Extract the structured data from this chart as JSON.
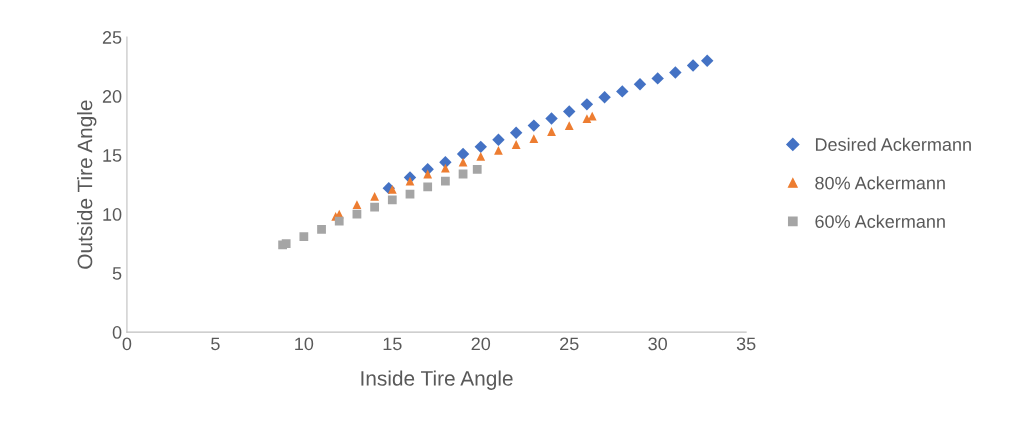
{
  "chart_data": {
    "type": "scatter",
    "xlabel": "Inside Tire Angle",
    "ylabel": "Outside Tire Angle",
    "xlim": [
      0,
      35
    ],
    "xticks": [
      0,
      5,
      10,
      15,
      20,
      25,
      30,
      35
    ],
    "ylim": [
      0,
      25
    ],
    "yticks": [
      0,
      5,
      10,
      15,
      20,
      25
    ],
    "grid": false,
    "legend": "right",
    "series": [
      {
        "name": "Desired Ackermann",
        "color": "#4472c4",
        "marker": "diamond",
        "x": [
          14.8,
          16,
          17,
          18,
          19,
          20,
          21,
          22,
          23,
          24,
          25,
          26,
          27,
          28,
          29,
          30,
          31,
          32,
          32.8
        ],
        "values": [
          12.2,
          13.1,
          13.8,
          14.4,
          15.1,
          15.7,
          16.3,
          16.9,
          17.5,
          18.1,
          18.7,
          19.3,
          19.9,
          20.4,
          21.0,
          21.5,
          22.0,
          22.6,
          23.0
        ]
      },
      {
        "name": "80% Ackermann",
        "color": "#ed7d31",
        "marker": "triangle",
        "x": [
          11.8,
          12,
          13,
          14,
          15,
          16,
          17,
          18,
          19,
          20,
          21,
          22,
          23,
          24,
          25,
          26,
          26.3
        ],
        "values": [
          9.8,
          10.0,
          10.8,
          11.5,
          12.1,
          12.8,
          13.4,
          13.9,
          14.4,
          14.9,
          15.4,
          15.9,
          16.4,
          17.0,
          17.5,
          18.1,
          18.3
        ]
      },
      {
        "name": "60% Ackermann",
        "color": "#a5a5a5",
        "marker": "square",
        "x": [
          8.8,
          9,
          10,
          11,
          12,
          13,
          14,
          15,
          16,
          17,
          18,
          19,
          19.8
        ],
        "values": [
          7.4,
          7.5,
          8.1,
          8.7,
          9.4,
          10.0,
          10.6,
          11.2,
          11.7,
          12.3,
          12.8,
          13.4,
          13.8
        ]
      }
    ]
  }
}
